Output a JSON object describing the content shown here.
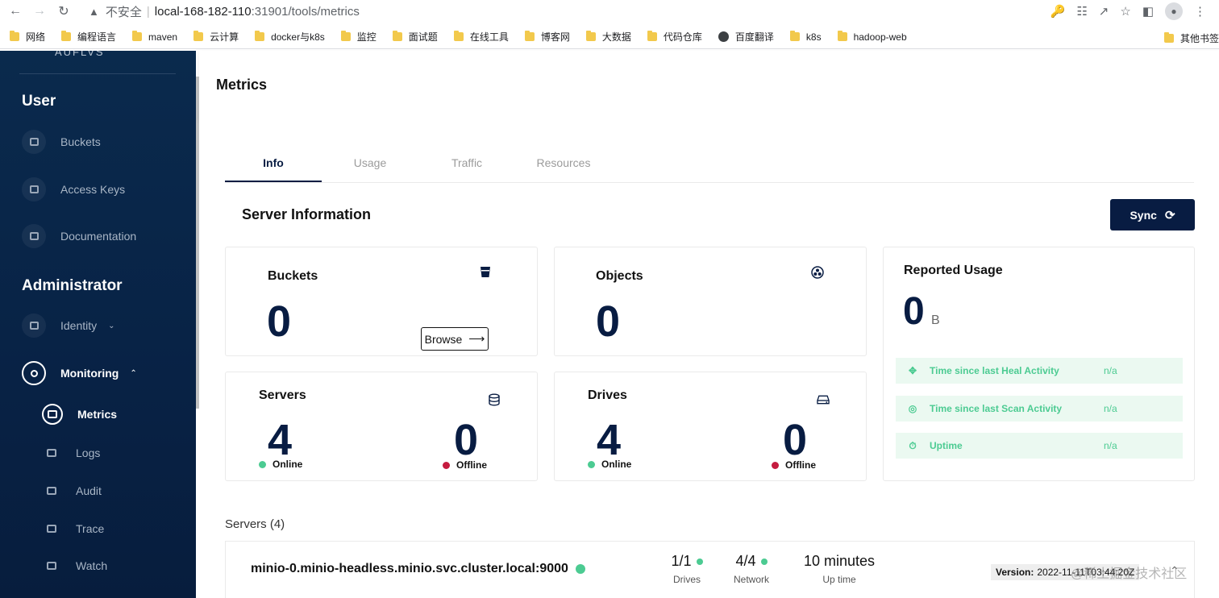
{
  "browser": {
    "insecure_label": "不安全",
    "separator": "|",
    "url_host": "local-168-182-110",
    "url_path": ":31901/tools/metrics",
    "bookmarks": [
      "网络",
      "编程语言",
      "maven",
      "云计算",
      "docker与k8s",
      "监控",
      "面试题",
      "在线工具",
      "博客网",
      "大数据",
      "代码仓库",
      "百度翻译",
      "k8s",
      "hadoop-web"
    ],
    "other_bookmarks": "其他书签"
  },
  "sidebar": {
    "logo_cut": "AUFLVS",
    "user_section": "User",
    "user_items": [
      "Buckets",
      "Access Keys",
      "Documentation"
    ],
    "admin_section": "Administrator",
    "identity": "Identity",
    "monitoring": "Monitoring",
    "monitoring_items": [
      "Metrics",
      "Logs",
      "Audit",
      "Trace",
      "Watch"
    ]
  },
  "header": {
    "title": "Metrics"
  },
  "tabs": [
    "Info",
    "Usage",
    "Traffic",
    "Resources"
  ],
  "server_info": {
    "title": "Server Information",
    "sync_label": "Sync"
  },
  "cards": {
    "buckets": {
      "label": "Buckets",
      "value": "0",
      "browse_label": "Browse"
    },
    "objects": {
      "label": "Objects",
      "value": "0"
    },
    "servers": {
      "label": "Servers",
      "online": "4",
      "offline": "0",
      "online_label": "Online",
      "offline_label": "Offline"
    },
    "drives": {
      "label": "Drives",
      "online": "4",
      "offline": "0",
      "online_label": "Online",
      "offline_label": "Offline"
    },
    "usage": {
      "label": "Reported Usage",
      "value": "0",
      "unit": "B",
      "rows": [
        {
          "label": "Time since last Heal Activity",
          "value": "n/a"
        },
        {
          "label": "Time since last Scan Activity",
          "value": "n/a"
        },
        {
          "label": "Uptime",
          "value": "n/a"
        }
      ]
    }
  },
  "servers_list": {
    "title": "Servers (4)",
    "rows": [
      {
        "name": "minio-0.minio-headless.minio.svc.cluster.local:9000",
        "drives": "1/1",
        "drives_label": "Drives",
        "network": "4/4",
        "network_label": "Network",
        "uptime": "10 minutes",
        "uptime_label": "Up time",
        "version_label": "Version:",
        "version": "2022-11-11T03:44:20Z"
      }
    ]
  },
  "watermark": "@稀土掘金技术社区",
  "colors": {
    "sidebar": "#082245",
    "accent": "#081c42",
    "online": "#4ccb92",
    "offline": "#c51b3f",
    "usage_row_bg": "#ebf9f1"
  }
}
